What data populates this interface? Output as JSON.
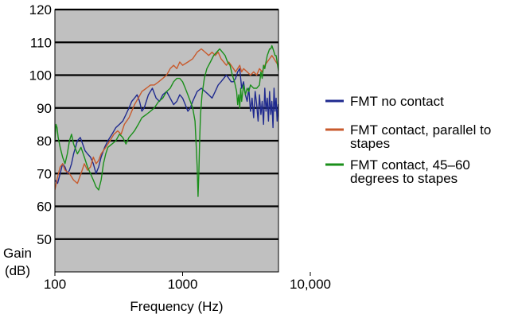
{
  "chart_data": {
    "type": "line",
    "title": "",
    "xlabel": "Frequency (Hz)",
    "ylabel_lines": [
      "Gain",
      "(dB)"
    ],
    "x_scale": "log",
    "xlim": [
      100,
      6000
    ],
    "ylim": [
      40,
      120
    ],
    "x_ticks": [
      {
        "value": 100,
        "label": "100"
      },
      {
        "value": 1000,
        "label": "1000"
      },
      {
        "value": 10000,
        "label": "10,000"
      }
    ],
    "y_ticks": [
      {
        "value": 50,
        "label": "50"
      },
      {
        "value": 60,
        "label": "60"
      },
      {
        "value": 70,
        "label": "70"
      },
      {
        "value": 80,
        "label": "80"
      },
      {
        "value": 90,
        "label": "90"
      },
      {
        "value": 100,
        "label": "100"
      },
      {
        "value": 110,
        "label": "110"
      },
      {
        "value": 120,
        "label": "120"
      }
    ],
    "grid": true,
    "plot_background": "#c0c0c0",
    "legend_position": "right",
    "series": [
      {
        "name": "FMT no contact",
        "legend_lines": [
          "FMT no contact"
        ],
        "color": "#1f2a8f",
        "points": [
          [
            100,
            68
          ],
          [
            105,
            67
          ],
          [
            110,
            70
          ],
          [
            115,
            73
          ],
          [
            120,
            72
          ],
          [
            125,
            70
          ],
          [
            130,
            71
          ],
          [
            135,
            73
          ],
          [
            140,
            76
          ],
          [
            145,
            78
          ],
          [
            150,
            80
          ],
          [
            158,
            81
          ],
          [
            165,
            79
          ],
          [
            172,
            77
          ],
          [
            180,
            76
          ],
          [
            190,
            75
          ],
          [
            200,
            73
          ],
          [
            210,
            70
          ],
          [
            220,
            72
          ],
          [
            230,
            75
          ],
          [
            245,
            78
          ],
          [
            260,
            80
          ],
          [
            280,
            82
          ],
          [
            300,
            84
          ],
          [
            320,
            85
          ],
          [
            340,
            86
          ],
          [
            360,
            88
          ],
          [
            380,
            90
          ],
          [
            400,
            92
          ],
          [
            420,
            93
          ],
          [
            440,
            94
          ],
          [
            460,
            92
          ],
          [
            480,
            89
          ],
          [
            500,
            90
          ],
          [
            540,
            94
          ],
          [
            580,
            96
          ],
          [
            620,
            93
          ],
          [
            660,
            92
          ],
          [
            700,
            94
          ],
          [
            750,
            95
          ],
          [
            800,
            93
          ],
          [
            850,
            91
          ],
          [
            900,
            92
          ],
          [
            950,
            94
          ],
          [
            1000,
            93
          ],
          [
            1050,
            91
          ],
          [
            1100,
            89
          ],
          [
            1150,
            90
          ],
          [
            1200,
            92
          ],
          [
            1300,
            95
          ],
          [
            1400,
            96
          ],
          [
            1500,
            95
          ],
          [
            1600,
            94
          ],
          [
            1700,
            93
          ],
          [
            1800,
            95
          ],
          [
            1900,
            97
          ],
          [
            2000,
            98
          ],
          [
            2100,
            99
          ],
          [
            2200,
            100
          ],
          [
            2300,
            99
          ],
          [
            2400,
            98
          ],
          [
            2500,
            98
          ],
          [
            2600,
            99
          ],
          [
            2700,
            101
          ],
          [
            2800,
            102
          ],
          [
            2900,
            96
          ],
          [
            3000,
            98
          ],
          [
            3100,
            94
          ],
          [
            3200,
            92
          ],
          [
            3300,
            96
          ],
          [
            3400,
            89
          ],
          [
            3500,
            93
          ],
          [
            3600,
            87
          ],
          [
            3700,
            95
          ],
          [
            3800,
            91
          ],
          [
            3900,
            86
          ],
          [
            4000,
            94
          ],
          [
            4100,
            88
          ],
          [
            4200,
            92
          ],
          [
            4300,
            85
          ],
          [
            4400,
            96
          ],
          [
            4500,
            89
          ],
          [
            4600,
            93
          ],
          [
            4700,
            86
          ],
          [
            4800,
            95
          ],
          [
            4900,
            88
          ],
          [
            5000,
            92
          ],
          [
            5100,
            84
          ],
          [
            5200,
            96
          ],
          [
            5300,
            89
          ],
          [
            5400,
            93
          ],
          [
            5500,
            86
          ],
          [
            5600,
            91
          ],
          [
            5700,
            83
          ],
          [
            5800,
            89
          ],
          [
            5900,
            86
          ],
          [
            6000,
            85
          ]
        ]
      },
      {
        "name": "FMT contact, parallel to stapes",
        "legend_lines": [
          "FMT contact, parallel to",
          "stapes"
        ],
        "color": "#c85a2c",
        "points": [
          [
            100,
            65
          ],
          [
            105,
            69
          ],
          [
            110,
            72
          ],
          [
            115,
            73
          ],
          [
            120,
            71
          ],
          [
            130,
            70
          ],
          [
            140,
            68
          ],
          [
            150,
            67
          ],
          [
            160,
            70
          ],
          [
            170,
            73
          ],
          [
            180,
            71
          ],
          [
            190,
            72
          ],
          [
            200,
            75
          ],
          [
            210,
            73
          ],
          [
            220,
            74
          ],
          [
            230,
            76
          ],
          [
            250,
            78
          ],
          [
            270,
            80
          ],
          [
            290,
            82
          ],
          [
            310,
            83
          ],
          [
            330,
            82
          ],
          [
            350,
            85
          ],
          [
            380,
            87
          ],
          [
            400,
            89
          ],
          [
            420,
            91
          ],
          [
            450,
            93
          ],
          [
            480,
            95
          ],
          [
            520,
            96
          ],
          [
            560,
            97
          ],
          [
            600,
            97
          ],
          [
            650,
            98
          ],
          [
            700,
            99
          ],
          [
            750,
            100
          ],
          [
            800,
            102
          ],
          [
            850,
            103
          ],
          [
            900,
            102
          ],
          [
            950,
            104
          ],
          [
            1000,
            103
          ],
          [
            1100,
            104
          ],
          [
            1200,
            105
          ],
          [
            1300,
            107
          ],
          [
            1400,
            108
          ],
          [
            1500,
            107
          ],
          [
            1600,
            106
          ],
          [
            1700,
            107
          ],
          [
            1800,
            106
          ],
          [
            1900,
            107
          ],
          [
            2000,
            105
          ],
          [
            2100,
            104
          ],
          [
            2200,
            103
          ],
          [
            2300,
            104
          ],
          [
            2400,
            103
          ],
          [
            2500,
            102
          ],
          [
            2600,
            101
          ],
          [
            2700,
            102
          ],
          [
            2800,
            103
          ],
          [
            2900,
            101
          ],
          [
            3000,
            102
          ],
          [
            3200,
            101
          ],
          [
            3400,
            100
          ],
          [
            3600,
            101
          ],
          [
            3800,
            100
          ],
          [
            4000,
            102
          ],
          [
            4200,
            101
          ],
          [
            4400,
            103
          ],
          [
            4600,
            104
          ],
          [
            4800,
            105
          ],
          [
            5000,
            106
          ],
          [
            5200,
            105
          ],
          [
            5400,
            104
          ],
          [
            5600,
            103
          ],
          [
            5800,
            100
          ],
          [
            5900,
            97
          ],
          [
            6000,
            98
          ]
        ]
      },
      {
        "name": "FMT contact, 45–60 degrees to stapes",
        "legend_lines": [
          "FMT contact, 45–60",
          "degrees to stapes"
        ],
        "color": "#1a8f1a",
        "points": [
          [
            100,
            80
          ],
          [
            102,
            85
          ],
          [
            104,
            84
          ],
          [
            106,
            81
          ],
          [
            110,
            78
          ],
          [
            115,
            75
          ],
          [
            120,
            73
          ],
          [
            125,
            76
          ],
          [
            130,
            80
          ],
          [
            135,
            82
          ],
          [
            140,
            79
          ],
          [
            150,
            76
          ],
          [
            160,
            78
          ],
          [
            170,
            75
          ],
          [
            180,
            72
          ],
          [
            190,
            70
          ],
          [
            200,
            68
          ],
          [
            210,
            66
          ],
          [
            220,
            65
          ],
          [
            230,
            68
          ],
          [
            240,
            73
          ],
          [
            250,
            76
          ],
          [
            260,
            78
          ],
          [
            280,
            79
          ],
          [
            300,
            80
          ],
          [
            320,
            82
          ],
          [
            340,
            81
          ],
          [
            360,
            79
          ],
          [
            380,
            81
          ],
          [
            400,
            82
          ],
          [
            420,
            83
          ],
          [
            450,
            85
          ],
          [
            480,
            87
          ],
          [
            520,
            88
          ],
          [
            560,
            89
          ],
          [
            600,
            90
          ],
          [
            650,
            92
          ],
          [
            700,
            93
          ],
          [
            750,
            95
          ],
          [
            800,
            96
          ],
          [
            850,
            98
          ],
          [
            900,
            99
          ],
          [
            950,
            99
          ],
          [
            1000,
            98
          ],
          [
            1050,
            96
          ],
          [
            1100,
            94
          ],
          [
            1150,
            92
          ],
          [
            1200,
            90
          ],
          [
            1250,
            86
          ],
          [
            1280,
            78
          ],
          [
            1300,
            72
          ],
          [
            1320,
            63
          ],
          [
            1340,
            70
          ],
          [
            1360,
            80
          ],
          [
            1380,
            88
          ],
          [
            1420,
            94
          ],
          [
            1480,
            99
          ],
          [
            1550,
            102
          ],
          [
            1650,
            104
          ],
          [
            1750,
            106
          ],
          [
            1850,
            107
          ],
          [
            1950,
            108
          ],
          [
            2050,
            107
          ],
          [
            2150,
            106
          ],
          [
            2250,
            104
          ],
          [
            2350,
            103
          ],
          [
            2450,
            100
          ],
          [
            2550,
            98
          ],
          [
            2650,
            95
          ],
          [
            2700,
            91
          ],
          [
            2750,
            94
          ],
          [
            2800,
            90
          ],
          [
            2850,
            96
          ],
          [
            2900,
            92
          ],
          [
            3000,
            97
          ],
          [
            3100,
            94
          ],
          [
            3200,
            96
          ],
          [
            3300,
            95
          ],
          [
            3400,
            97
          ],
          [
            3600,
            96
          ],
          [
            3800,
            96
          ],
          [
            4000,
            97
          ],
          [
            4100,
            101
          ],
          [
            4200,
            99
          ],
          [
            4300,
            103
          ],
          [
            4400,
            102
          ],
          [
            4500,
            104
          ],
          [
            4600,
            106
          ],
          [
            4700,
            107
          ],
          [
            4800,
            108
          ],
          [
            4900,
            108
          ],
          [
            5000,
            109
          ],
          [
            5100,
            108
          ],
          [
            5200,
            107
          ],
          [
            5300,
            106
          ],
          [
            5400,
            106
          ],
          [
            5500,
            104
          ],
          [
            5600,
            102
          ],
          [
            5700,
            100
          ],
          [
            5800,
            97
          ],
          [
            5900,
            92
          ],
          [
            6000,
            88
          ]
        ]
      }
    ]
  }
}
